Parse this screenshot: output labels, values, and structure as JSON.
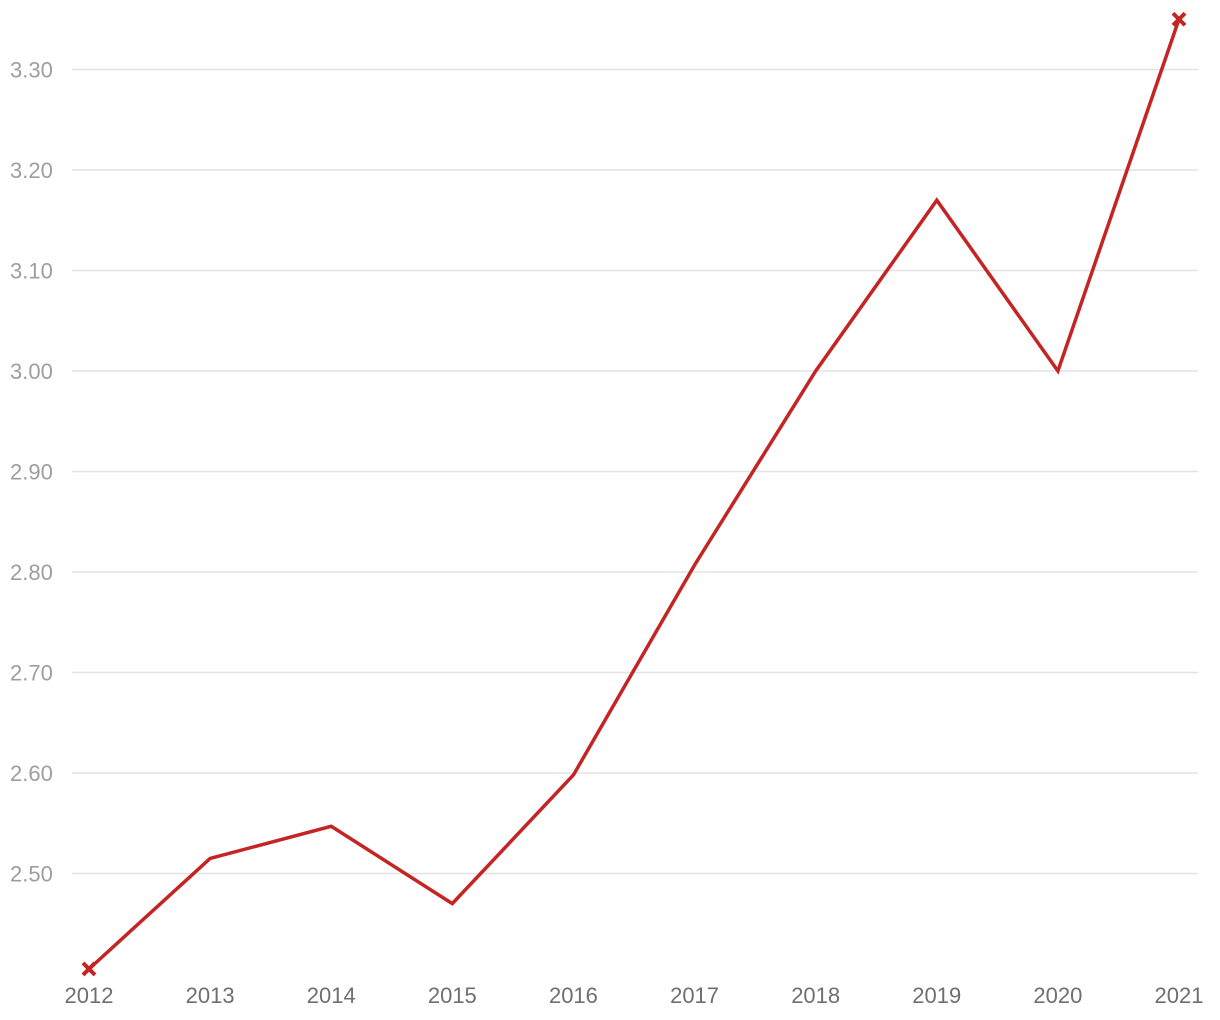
{
  "chart_data": {
    "type": "line",
    "title": "",
    "xlabel": "",
    "ylabel": "",
    "x": [
      "2012",
      "2013",
      "2014",
      "2015",
      "2016",
      "2017",
      "2018",
      "2019",
      "2020",
      "2021"
    ],
    "series": [
      {
        "values": [
          2.405,
          2.515,
          2.547,
          2.47,
          2.598,
          2.807,
          3.0,
          3.17,
          3.0,
          3.35
        ]
      }
    ],
    "ylim": [
      2.4,
      3.35
    ],
    "yticks": [
      "2.50",
      "2.60",
      "2.70",
      "2.80",
      "2.90",
      "3.00",
      "3.10",
      "3.20",
      "3.30"
    ],
    "grid": "horizontal",
    "legend": "none",
    "line_color": "#c42424",
    "endpoint_markers": "cross"
  }
}
